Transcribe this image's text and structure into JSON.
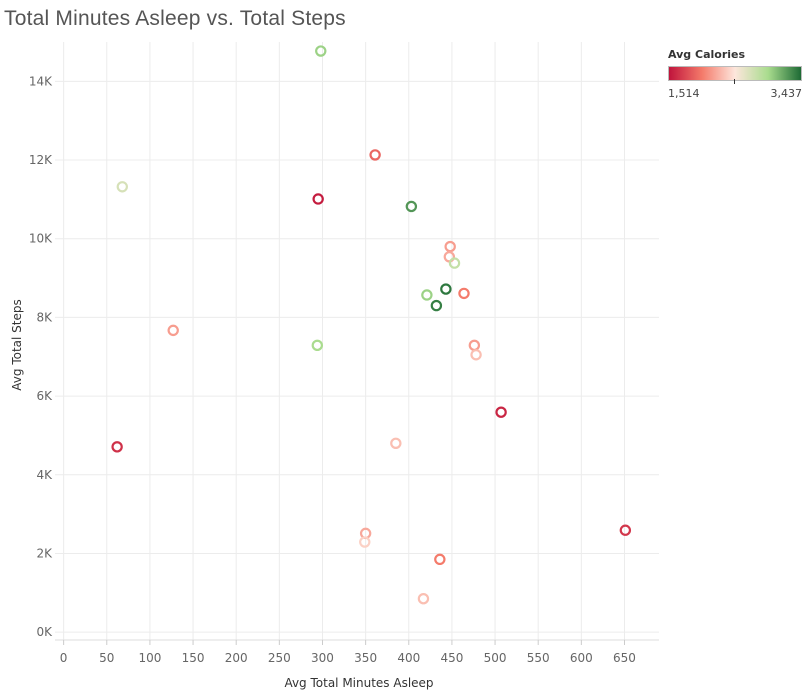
{
  "chart_data": {
    "type": "scatter",
    "title": "Total Minutes Asleep vs. Total Steps",
    "xlabel": "Avg Total Minutes Asleep",
    "ylabel": "Avg Total Steps",
    "xlim": [
      -10,
      690
    ],
    "ylim": [
      -200,
      15000
    ],
    "x_ticks": [
      0,
      50,
      100,
      150,
      200,
      250,
      300,
      350,
      400,
      450,
      500,
      550,
      600,
      650
    ],
    "y_ticks": [
      0,
      2000,
      4000,
      6000,
      8000,
      10000,
      12000,
      14000
    ],
    "y_tick_labels": [
      "0K",
      "2K",
      "4K",
      "6K",
      "8K",
      "10K",
      "12K",
      "14K"
    ],
    "grid": true,
    "color_legend": {
      "title": "Avg Calories",
      "min_label": "1,514",
      "max_label": "3,437",
      "min": 1514,
      "max": 3437,
      "placement": "top-right",
      "colors": [
        "#c0143c",
        "#f47a6a",
        "#fde6dc",
        "#a9dc8e",
        "#1d6a34"
      ]
    },
    "points": [
      {
        "x": 298,
        "y": 14770,
        "calories": 3000
      },
      {
        "x": 361,
        "y": 12130,
        "calories": 1900
      },
      {
        "x": 68,
        "y": 11320,
        "calories": 2700
      },
      {
        "x": 295,
        "y": 11010,
        "calories": 1550
      },
      {
        "x": 403,
        "y": 10820,
        "calories": 3250
      },
      {
        "x": 448,
        "y": 9800,
        "calories": 2150
      },
      {
        "x": 447,
        "y": 9540,
        "calories": 2200
      },
      {
        "x": 453,
        "y": 9380,
        "calories": 2800
      },
      {
        "x": 443,
        "y": 8720,
        "calories": 3380
      },
      {
        "x": 421,
        "y": 8570,
        "calories": 3000
      },
      {
        "x": 464,
        "y": 8610,
        "calories": 2000
      },
      {
        "x": 432,
        "y": 8300,
        "calories": 3350
      },
      {
        "x": 127,
        "y": 7670,
        "calories": 2150
      },
      {
        "x": 294,
        "y": 7290,
        "calories": 2950
      },
      {
        "x": 476,
        "y": 7290,
        "calories": 2150
      },
      {
        "x": 478,
        "y": 7050,
        "calories": 2300
      },
      {
        "x": 507,
        "y": 5590,
        "calories": 1600
      },
      {
        "x": 62,
        "y": 4710,
        "calories": 1650
      },
      {
        "x": 385,
        "y": 4800,
        "calories": 2300
      },
      {
        "x": 350,
        "y": 2510,
        "calories": 2200
      },
      {
        "x": 349,
        "y": 2290,
        "calories": 2380
      },
      {
        "x": 651,
        "y": 2590,
        "calories": 1680
      },
      {
        "x": 436,
        "y": 1850,
        "calories": 2000
      },
      {
        "x": 417,
        "y": 850,
        "calories": 2300
      }
    ]
  }
}
